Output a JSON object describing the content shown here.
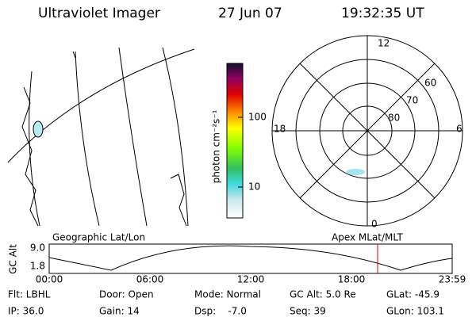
{
  "header": {
    "title": "Ultraviolet Imager",
    "date": "27 Jun 07",
    "time": "19:32:35 UT"
  },
  "colorbar": {
    "label": "photon cm⁻²s⁻¹",
    "ticks": [
      "100",
      "10"
    ]
  },
  "polar": {
    "labels": [
      "12",
      "18",
      "6",
      "0",
      "60",
      "70",
      "80"
    ]
  },
  "altitude_plot": {
    "left_title": "Geographic Lat/Lon",
    "right_title": "Apex MLat/MLT",
    "y_label": "GC Alt",
    "y_ticks": [
      "9.0",
      "1.8"
    ],
    "x_ticks": [
      "00:00",
      "06:00",
      "12:00",
      "18:00",
      "23:59"
    ]
  },
  "footer": {
    "rows": [
      [
        "Flt: LBHL",
        "Door: Open",
        "Mode: Normal",
        "GC Alt: 5.0 Re",
        "GLat: -45.9"
      ],
      [
        "IP: 36.0",
        "Gain: 14",
        "Dsp:    -7.0",
        "Seq: 39",
        "GLon: 103.1"
      ]
    ]
  }
}
